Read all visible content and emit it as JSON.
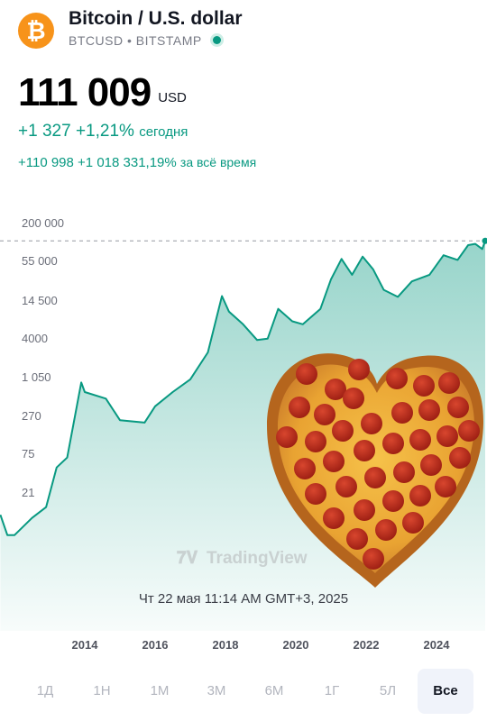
{
  "header": {
    "coin_symbol": "₿",
    "title": "Bitcoin / U.S. dollar",
    "ticker": "BTCUSD",
    "separator": "•",
    "exchange": "BITSTAMP"
  },
  "price": {
    "value": "111 009",
    "currency": "USD"
  },
  "change_today": {
    "abs": "+1 327",
    "pct": "+1,21%",
    "label": "сегодня"
  },
  "change_all_time": {
    "abs": "+110 998",
    "pct": "+1 018 331,19%",
    "label": "за всё время"
  },
  "chart": {
    "watermark": "TradingView",
    "timestamp": "Чт 22 мая 11:14 AM GMT+3, 2025",
    "y_ticks": [
      "200 000",
      "55 000",
      "14 500",
      "4000",
      "1 050",
      "270",
      "75",
      "21"
    ],
    "x_ticks": [
      "2014",
      "2016",
      "2018",
      "2020",
      "2022",
      "2024"
    ]
  },
  "chart_data": {
    "type": "area",
    "scale": "log",
    "y_ticks": [
      200000,
      55000,
      14500,
      4000,
      1050,
      270,
      75,
      21
    ],
    "x_ticks": [
      2014,
      2016,
      2018,
      2020,
      2022,
      2024
    ],
    "grid": false,
    "reference_line": 111009,
    "color": "#089981",
    "points": [
      [
        2011.6,
        10
      ],
      [
        2011.8,
        5
      ],
      [
        2012.0,
        5
      ],
      [
        2012.5,
        9
      ],
      [
        2012.9,
        13
      ],
      [
        2013.2,
        50
      ],
      [
        2013.5,
        70
      ],
      [
        2013.9,
        900
      ],
      [
        2014.0,
        650
      ],
      [
        2014.6,
        520
      ],
      [
        2015.0,
        250
      ],
      [
        2015.7,
        230
      ],
      [
        2016.0,
        400
      ],
      [
        2016.5,
        650
      ],
      [
        2017.0,
        1000
      ],
      [
        2017.5,
        2500
      ],
      [
        2017.9,
        17000
      ],
      [
        2018.1,
        10000
      ],
      [
        2018.5,
        6500
      ],
      [
        2018.9,
        3800
      ],
      [
        2019.2,
        4000
      ],
      [
        2019.5,
        11000
      ],
      [
        2019.9,
        7200
      ],
      [
        2020.2,
        6500
      ],
      [
        2020.7,
        11000
      ],
      [
        2021.0,
        30000
      ],
      [
        2021.3,
        60000
      ],
      [
        2021.6,
        35000
      ],
      [
        2021.9,
        65000
      ],
      [
        2022.2,
        42000
      ],
      [
        2022.5,
        21000
      ],
      [
        2022.9,
        16500
      ],
      [
        2023.3,
        28000
      ],
      [
        2023.8,
        35000
      ],
      [
        2024.2,
        68000
      ],
      [
        2024.6,
        58000
      ],
      [
        2024.9,
        96000
      ],
      [
        2025.1,
        100000
      ],
      [
        2025.3,
        84000
      ],
      [
        2025.4,
        111009
      ]
    ]
  },
  "timeframes": {
    "items": [
      "1Д",
      "1Н",
      "1М",
      "3М",
      "6М",
      "1Г",
      "5Л",
      "Все"
    ],
    "active": "Все"
  },
  "colors": {
    "accent": "#089981",
    "coin": "#F7931A",
    "text": "#131722",
    "muted": "#787b86"
  }
}
